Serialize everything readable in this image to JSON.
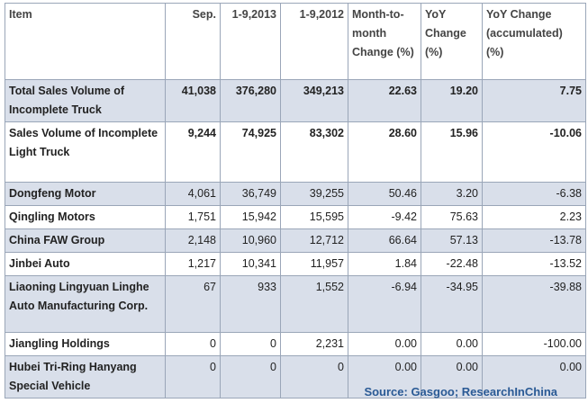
{
  "table": {
    "header": [
      "Item",
      "Sep.",
      "1-9,2013",
      "1-9,2012",
      "Month-to-month Change (%)",
      "YoY Change (%)",
      "YoY Change (accumulated) (%)"
    ],
    "rows": [
      [
        "Total Sales Volume of Incomplete Truck",
        "41,038",
        "376,280",
        "349,213",
        "22.63",
        "19.20",
        "7.75"
      ],
      [
        "Sales Volume of Incomplete Light Truck",
        "9,244",
        "74,925",
        "83,302",
        "28.60",
        "15.96",
        "-10.06"
      ],
      [
        "Dongfeng Motor",
        "4,061",
        "36,749",
        "39,255",
        "50.46",
        "3.20",
        "-6.38"
      ],
      [
        "Qingling Motors",
        "1,751",
        "15,942",
        "15,595",
        "-9.42",
        "75.63",
        "2.23"
      ],
      [
        "China FAW Group",
        "2,148",
        "10,960",
        "12,712",
        "66.64",
        "57.13",
        "-13.78"
      ],
      [
        "Jinbei Auto",
        "1,217",
        "10,341",
        "11,957",
        "1.84",
        "-22.48",
        "-13.52"
      ],
      [
        "Liaoning Lingyuan Linghe Auto Manufacturing Corp.",
        "67",
        "933",
        "1,552",
        "-6.94",
        "-34.95",
        "-39.88"
      ],
      [
        "Jiangling Holdings",
        "0",
        "0",
        "2,231",
        "0.00",
        "0.00",
        "-100.00"
      ],
      [
        "Hubei Tri-Ring Hanyang Special Vehicle",
        "0",
        "0",
        "0",
        "0.00",
        "0.00",
        "0.00"
      ]
    ]
  },
  "source": "Source: Gasgoo; ResearchInChina"
}
